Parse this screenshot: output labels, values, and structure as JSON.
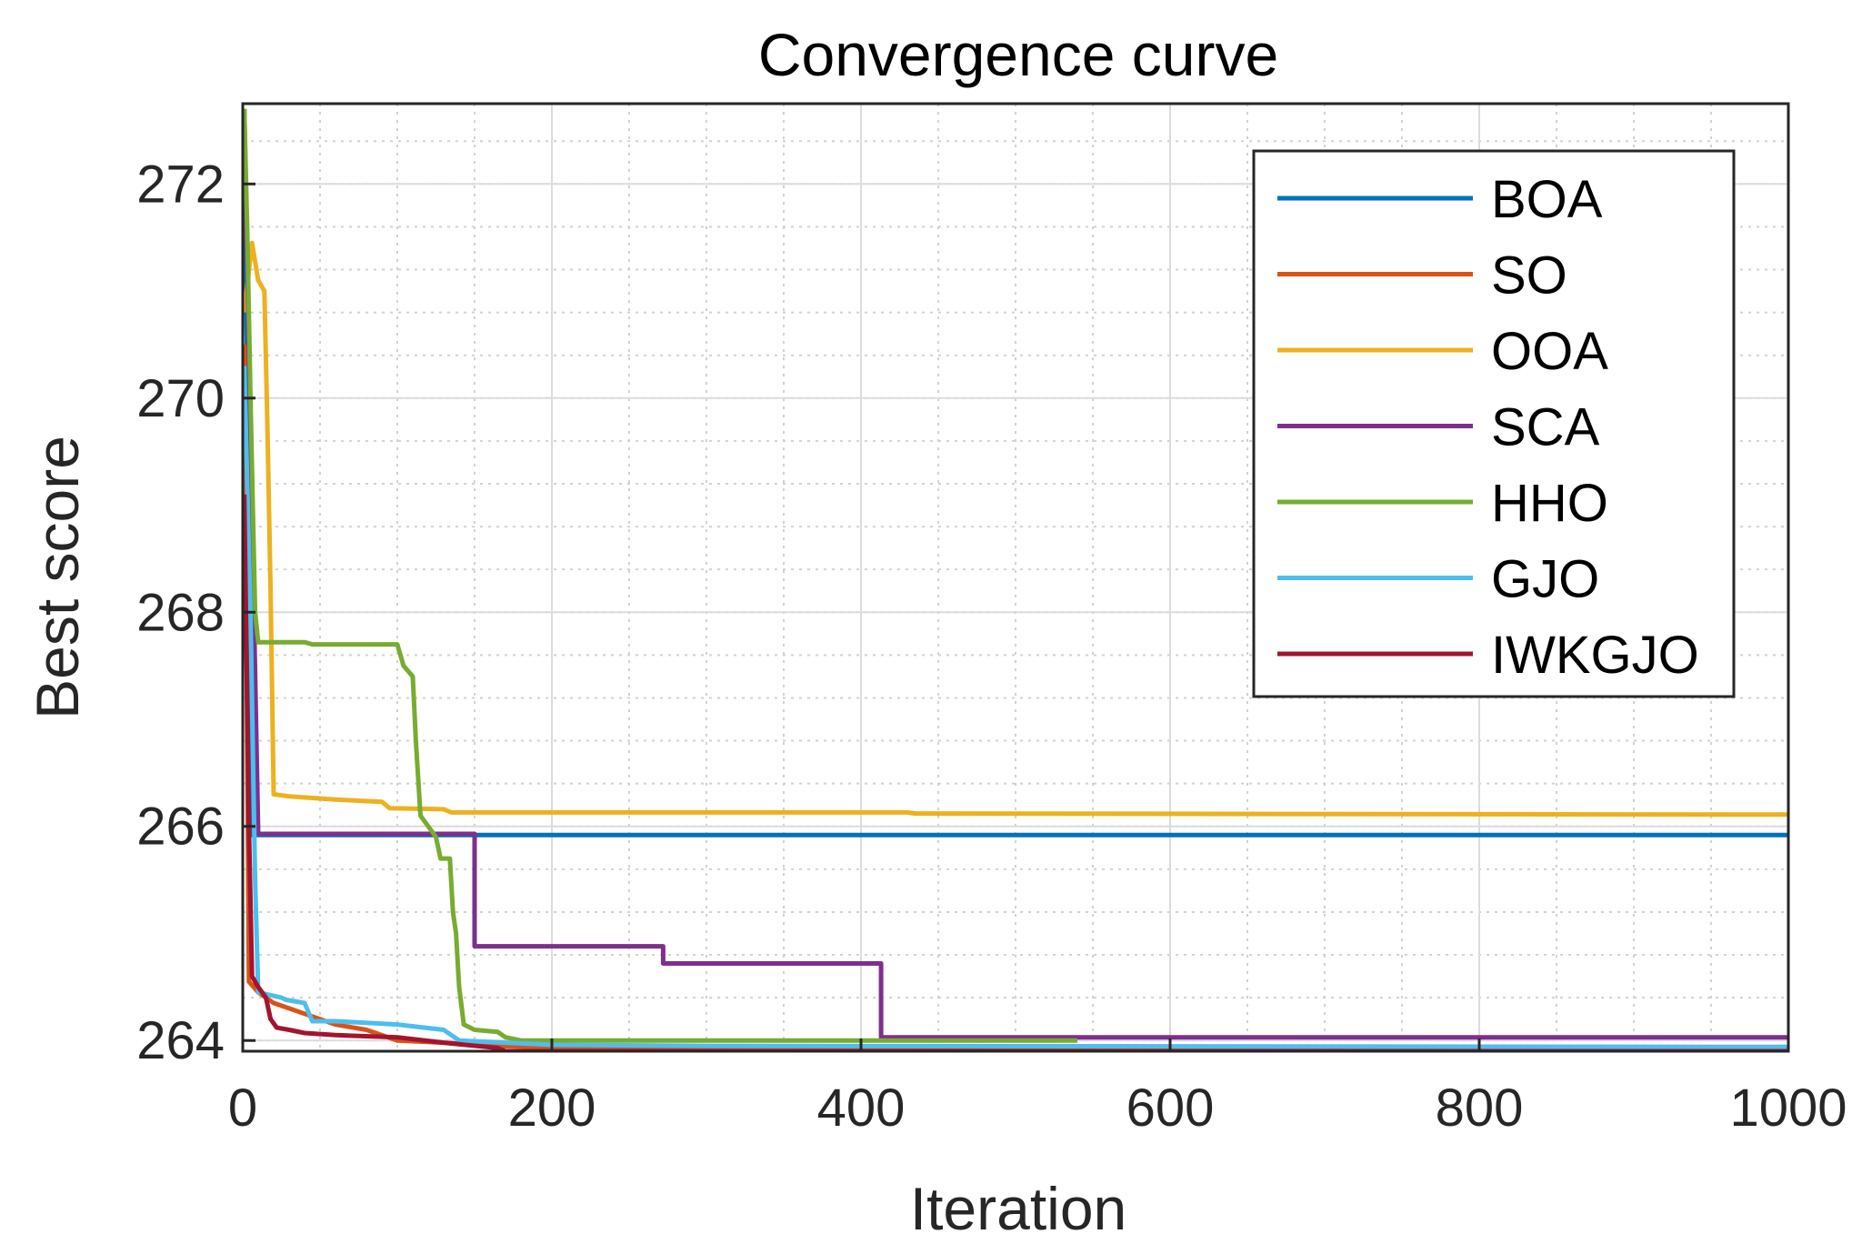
{
  "chart_data": {
    "type": "line",
    "title": "Convergence curve",
    "xlabel": "Iteration",
    "ylabel": "Best score",
    "xlim": [
      0,
      1000
    ],
    "ylim": [
      263.9,
      272.75
    ],
    "xticks": [
      0,
      200,
      400,
      600,
      800,
      1000
    ],
    "yticks": [
      264,
      266,
      268,
      270,
      272
    ],
    "grid": true,
    "minor_grid": true,
    "legend_position": "top-right",
    "series": [
      {
        "name": "BOA",
        "color": "#0072BD",
        "points": [
          [
            1,
            272.7
          ],
          [
            6,
            265.92
          ],
          [
            1000,
            265.92
          ]
        ]
      },
      {
        "name": "SO",
        "color": "#D95319",
        "points": [
          [
            1,
            270.5
          ],
          [
            4,
            264.55
          ],
          [
            10,
            264.45
          ],
          [
            20,
            264.35
          ],
          [
            30,
            264.3
          ],
          [
            40,
            264.25
          ],
          [
            60,
            264.15
          ],
          [
            80,
            264.1
          ],
          [
            100,
            264.0
          ],
          [
            130,
            263.98
          ],
          [
            160,
            263.95
          ],
          [
            220,
            263.93
          ],
          [
            300,
            263.92
          ],
          [
            1000,
            263.91
          ]
        ]
      },
      {
        "name": "OOA",
        "color": "#EDB120",
        "points": [
          [
            1,
            270.8
          ],
          [
            6,
            271.45
          ],
          [
            10,
            271.1
          ],
          [
            14,
            271.0
          ],
          [
            16,
            269.7
          ],
          [
            18,
            268.2
          ],
          [
            20,
            266.3
          ],
          [
            30,
            266.28
          ],
          [
            60,
            266.25
          ],
          [
            90,
            266.23
          ],
          [
            95,
            266.17
          ],
          [
            130,
            266.16
          ],
          [
            135,
            266.13
          ],
          [
            430,
            266.13
          ],
          [
            435,
            266.12
          ],
          [
            1000,
            266.11
          ]
        ]
      },
      {
        "name": "SCA",
        "color": "#7E2F8E",
        "points": [
          [
            1,
            272.7
          ],
          [
            10,
            265.93
          ],
          [
            150,
            265.93
          ],
          [
            150,
            264.88
          ],
          [
            272,
            264.88
          ],
          [
            272,
            264.72
          ],
          [
            413,
            264.72
          ],
          [
            413,
            264.03
          ],
          [
            1000,
            264.03
          ]
        ]
      },
      {
        "name": "HHO",
        "color": "#77AC30",
        "points": [
          [
            1,
            272.7
          ],
          [
            3,
            271.5
          ],
          [
            5,
            270.0
          ],
          [
            8,
            268.0
          ],
          [
            10,
            267.72
          ],
          [
            40,
            267.72
          ],
          [
            45,
            267.7
          ],
          [
            100,
            267.7
          ],
          [
            104,
            267.5
          ],
          [
            110,
            267.4
          ],
          [
            112,
            266.8
          ],
          [
            115,
            266.1
          ],
          [
            120,
            266.0
          ],
          [
            125,
            265.9
          ],
          [
            128,
            265.7
          ],
          [
            134,
            265.7
          ],
          [
            136,
            265.2
          ],
          [
            138,
            265.0
          ],
          [
            140,
            264.5
          ],
          [
            143,
            264.15
          ],
          [
            150,
            264.1
          ],
          [
            165,
            264.08
          ],
          [
            170,
            264.03
          ],
          [
            180,
            264.0
          ],
          [
            250,
            264.0
          ],
          [
            540,
            264.0
          ]
        ]
      },
      {
        "name": "GJO",
        "color": "#4DBEEE",
        "points": [
          [
            1,
            270.3
          ],
          [
            5,
            268.0
          ],
          [
            8,
            265.5
          ],
          [
            10,
            264.45
          ],
          [
            25,
            264.4
          ],
          [
            28,
            264.38
          ],
          [
            40,
            264.35
          ],
          [
            45,
            264.18
          ],
          [
            60,
            264.18
          ],
          [
            100,
            264.15
          ],
          [
            130,
            264.1
          ],
          [
            140,
            264.0
          ],
          [
            170,
            263.98
          ],
          [
            200,
            263.96
          ],
          [
            300,
            263.95
          ],
          [
            1000,
            263.94
          ]
        ]
      },
      {
        "name": "IWKGJO",
        "color": "#A2142F",
        "points": [
          [
            1,
            269.1
          ],
          [
            4,
            266.0
          ],
          [
            6,
            264.6
          ],
          [
            10,
            264.5
          ],
          [
            15,
            264.4
          ],
          [
            18,
            264.2
          ],
          [
            22,
            264.12
          ],
          [
            30,
            264.1
          ],
          [
            40,
            264.07
          ],
          [
            60,
            264.05
          ],
          [
            100,
            264.03
          ],
          [
            130,
            263.98
          ],
          [
            165,
            263.93
          ],
          [
            170,
            263.9
          ],
          [
            1000,
            263.9
          ]
        ]
      }
    ]
  }
}
